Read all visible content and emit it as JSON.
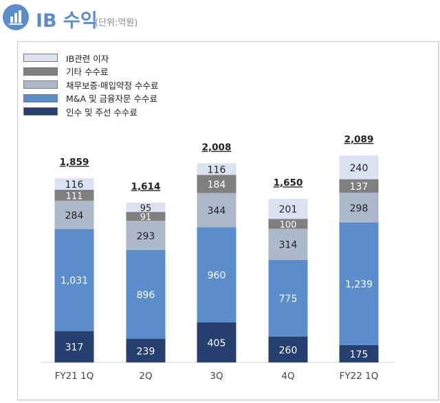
{
  "header": {
    "title": "IB 수익",
    "unit": "(단위:억원)",
    "icon": "bar-chart-icon"
  },
  "chart_data": {
    "type": "stacked-bar",
    "title": "",
    "categories": [
      "FY21 1Q",
      "2Q",
      "3Q",
      "4Q",
      "FY22 1Q"
    ],
    "totals": [
      "1,859",
      "1,614",
      "2,008",
      "1,650",
      "2,089"
    ],
    "series": [
      {
        "name": "인수 및 주선 수수료",
        "color": "#253f6e",
        "values": [
          317,
          239,
          405,
          260,
          175
        ],
        "labels": [
          "317",
          "239",
          "405",
          "260",
          "175"
        ]
      },
      {
        "name": "M&A  및 금융자문 수수료",
        "color": "#5b8ccb",
        "values": [
          1031,
          896,
          960,
          775,
          1239
        ],
        "labels": [
          "1,031",
          "896",
          "960",
          "775",
          "1,239"
        ]
      },
      {
        "name": "채무보증·매입약정 수수료",
        "color": "#adb9ca",
        "values": [
          284,
          293,
          344,
          314,
          298
        ],
        "labels": [
          "284",
          "293",
          "344",
          "314",
          "298"
        ]
      },
      {
        "name": "기타 수수료",
        "color": "#7f7f7f",
        "values": [
          111,
          91,
          184,
          100,
          137
        ],
        "labels": [
          "111",
          "91",
          "184",
          "100",
          "137"
        ]
      },
      {
        "name": "IB관련 이자",
        "color": "#dbe3f3",
        "values": [
          116,
          95,
          116,
          201,
          240
        ],
        "labels": [
          "116",
          "95",
          "116",
          "201",
          "240"
        ]
      }
    ],
    "legend_position": "top-left",
    "grid": false
  }
}
